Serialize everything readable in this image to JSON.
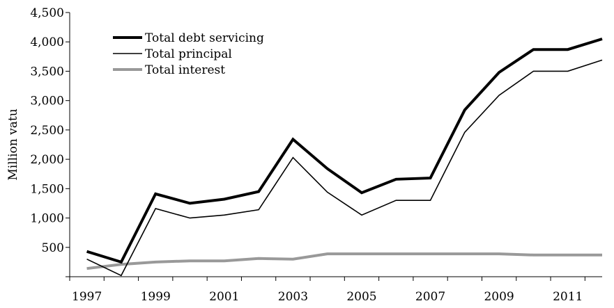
{
  "chart_data": {
    "type": "line",
    "title": "",
    "xlabel": "",
    "ylabel": "Million vatu",
    "ylim": [
      0,
      4500
    ],
    "yticks": [
      500,
      1000,
      1500,
      2000,
      2500,
      3000,
      3500,
      4000,
      4500
    ],
    "ytick_labels": [
      "500",
      "1,000",
      "1,500",
      "2,000",
      "2,500",
      "3,000",
      "3,500",
      "4,000",
      "4,500"
    ],
    "x": [
      1997,
      1998,
      1999,
      2000,
      2001,
      2002,
      2003,
      2004,
      2005,
      2006,
      2007,
      2008,
      2009,
      2010,
      2011,
      2012
    ],
    "xtick_labels": [
      "1997",
      "1999",
      "2001",
      "2003",
      "2005",
      "2007",
      "2009",
      "2011"
    ],
    "grid": false,
    "legend_position": "top-left",
    "series": [
      {
        "name": "Total debt servicing",
        "color": "#000000",
        "values": [
          430,
          250,
          1410,
          1250,
          1320,
          1450,
          2340,
          1840,
          1430,
          1660,
          1680,
          2840,
          3480,
          3870,
          3870,
          4050
        ]
      },
      {
        "name": "Total principal",
        "color": "#000000",
        "values": [
          300,
          20,
          1160,
          1000,
          1050,
          1140,
          2030,
          1440,
          1050,
          1300,
          1300,
          2460,
          3090,
          3500,
          3500,
          3690
        ]
      },
      {
        "name": "Total interest",
        "color": "#999999",
        "values": [
          140,
          210,
          250,
          270,
          270,
          310,
          300,
          390,
          390,
          390,
          390,
          390,
          390,
          370,
          370,
          370
        ]
      }
    ]
  }
}
